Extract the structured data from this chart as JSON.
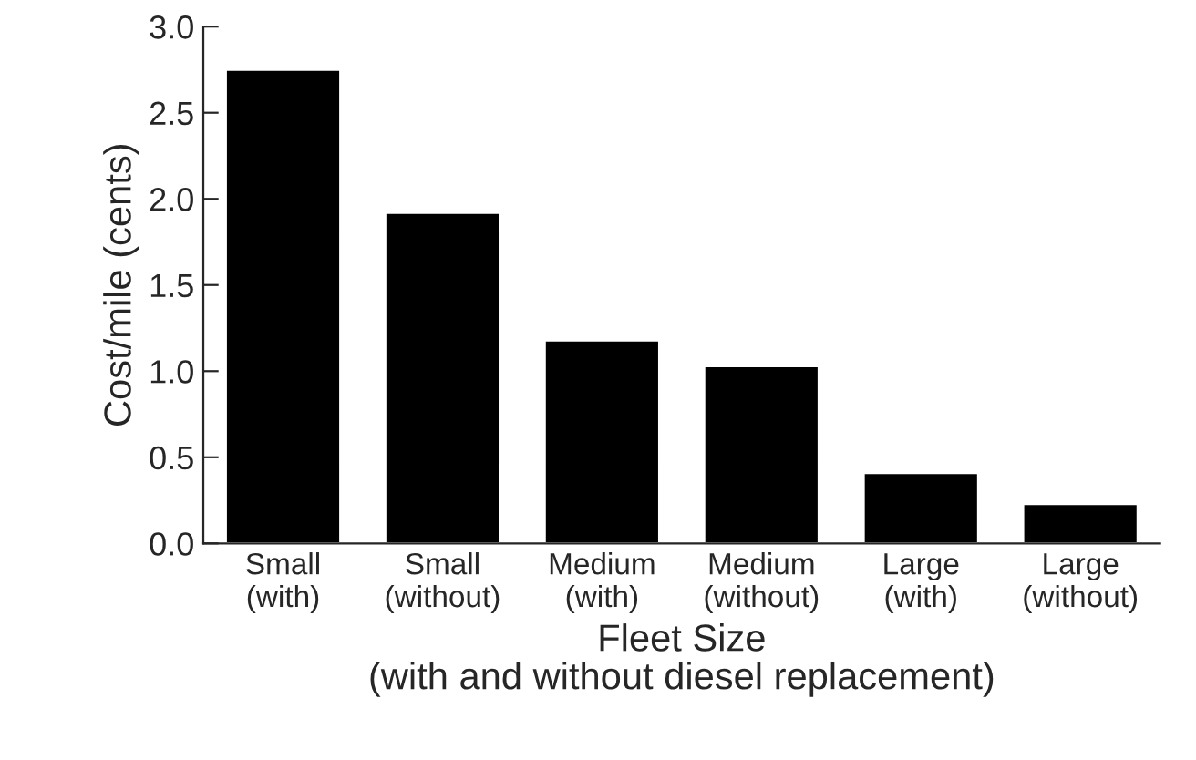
{
  "chart_data": {
    "type": "bar",
    "xlabel": "Fleet Size\n(with and without diesel replacement)",
    "ylabel": "Cost/mile (cents)",
    "categories": [
      "Small\n(with)",
      "Small\n(without)",
      "Medium\n(with)",
      "Medium\n(without)",
      "Large\n(with)",
      "Large\n(without)"
    ],
    "values": [
      2.75,
      1.92,
      1.18,
      1.03,
      0.41,
      0.23
    ],
    "color": "#000000",
    "ylim": [
      0,
      3.0
    ],
    "yticks": [
      {
        "value": 0,
        "label": "0.0"
      },
      {
        "value": 0.5,
        "label": "0.5"
      },
      {
        "value": 1.0,
        "label": "1.0"
      },
      {
        "value": 1.5,
        "label": "1.5"
      },
      {
        "value": 2.0,
        "label": "2.0"
      },
      {
        "value": 2.5,
        "label": "2.5"
      },
      {
        "value": 3.0,
        "label": "3.0"
      }
    ],
    "grid": false,
    "legend": false
  }
}
